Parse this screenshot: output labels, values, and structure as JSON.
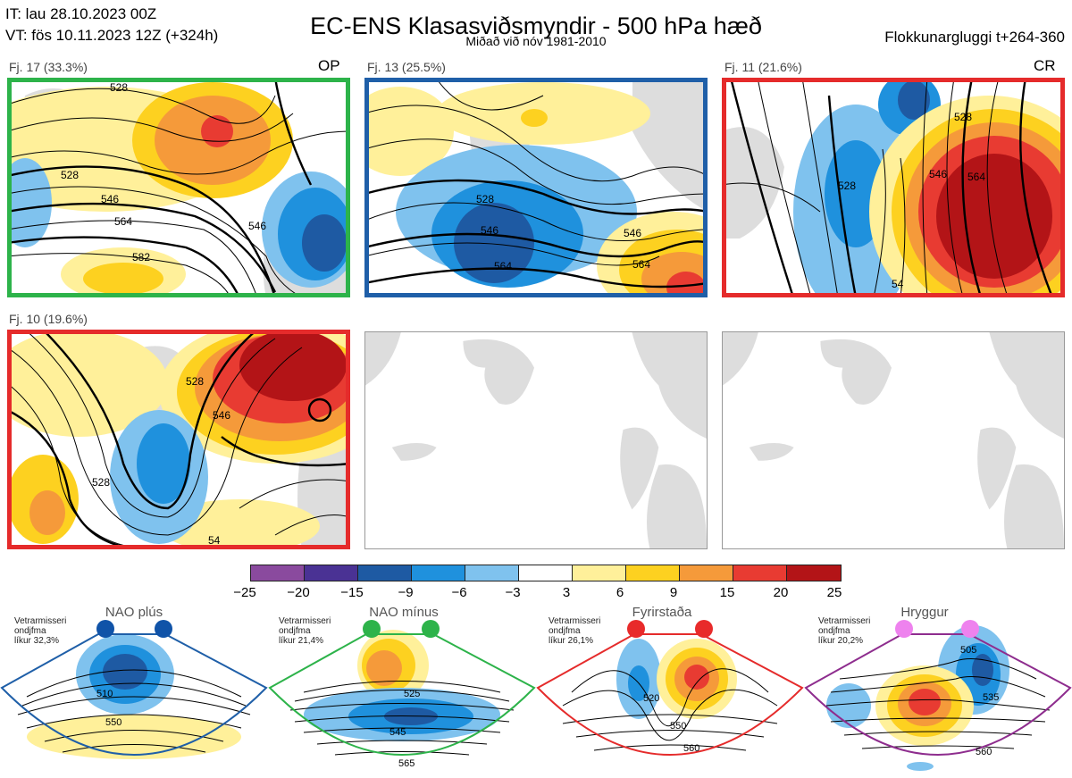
{
  "header": {
    "it": "IT: lau 28.10.2023 00Z",
    "vt": "VT: fös 10.11.2023 12Z  (+324h)",
    "title": "EC-ENS Klasasviðsmyndir - 500 hPa hæð",
    "subtitle": "Miðað við nóv 1981-2010",
    "window": "Flokkunargluggi t+264-360"
  },
  "panels": [
    {
      "label": "Fj. 17 (33.3%)",
      "tag": "OP",
      "border": "#2db34a",
      "contours": [
        "528",
        "546",
        "564",
        "582",
        "528",
        "546"
      ]
    },
    {
      "label": "Fj. 13 (25.5%)",
      "tag": "",
      "border": "#1f5fa8",
      "contours": [
        "528",
        "546",
        "564",
        "546",
        "564"
      ]
    },
    {
      "label": "Fj. 11 (21.6%)",
      "tag": "CR",
      "border": "#e52b2b",
      "contours": [
        "528",
        "546",
        "564",
        "528",
        "54"
      ]
    },
    {
      "label": "Fj. 10 (19.6%)",
      "tag": "",
      "border": "#e52b2b",
      "contours": [
        "528",
        "546",
        "528",
        "54"
      ]
    }
  ],
  "colorbar": {
    "colors": [
      "#8a4a9e",
      "#4a3294",
      "#1e5aa3",
      "#1f91dd",
      "#7fc2ee",
      "#ffffff",
      "#fff09a",
      "#fdd120",
      "#f59a3a",
      "#e83b32",
      "#b31417"
    ],
    "ticks": [
      "−25",
      "−20",
      "−15",
      "−9",
      "−6",
      "−3",
      "3",
      "6",
      "9",
      "15",
      "20",
      "25"
    ]
  },
  "regimes": [
    {
      "name": "NAO plús",
      "info": "Vetrarmisseri\nondjfma\nlíkur 32,3%",
      "color": "#1f5fa8",
      "dot": "#1053a8",
      "contours": [
        "510",
        "550"
      ]
    },
    {
      "name": "NAO mínus",
      "info": "Vetrarmisseri\nondjfma\nlíkur 21,4%",
      "color": "#2db34a",
      "dot": "#2db34a",
      "contours": [
        "525",
        "545",
        "565"
      ]
    },
    {
      "name": "Fyrirstaða",
      "info": "Vetrarmisseri\nondjfma\nlíkur 26,1%",
      "color": "#e52b2b",
      "dot": "#e82b2b",
      "contours": [
        "520",
        "550",
        "560"
      ]
    },
    {
      "name": "Hryggur",
      "info": "Vetrarmisseri\nondjfma\nlíkur 20,2%",
      "color": "#8e2d8e",
      "dot": "#ee82ee",
      "contours": [
        "505",
        "535",
        "560"
      ]
    }
  ]
}
